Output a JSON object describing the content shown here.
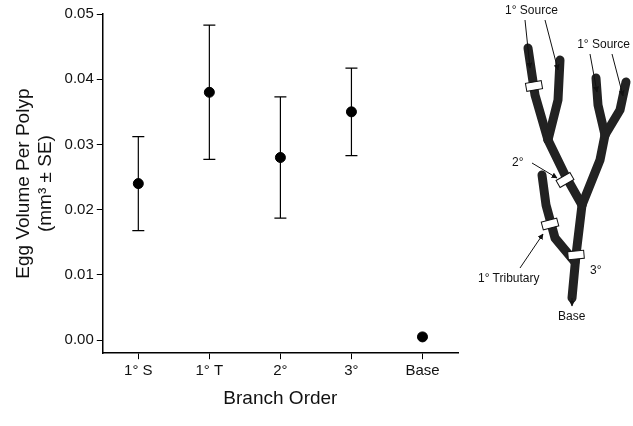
{
  "chart_data": {
    "type": "scatter",
    "x_label": "Branch Order",
    "y_label": [
      "Egg Volume Per Polyp",
      "(mm³ ± SE)"
    ],
    "categories": [
      "1° S",
      "1° T",
      "2°",
      "3°",
      "Base"
    ],
    "values": [
      0.024,
      0.038,
      0.028,
      0.035,
      0.0005
    ],
    "errors": [
      0.0072,
      0.0103,
      0.0093,
      0.0067,
      null
    ],
    "color": "#000000",
    "marker": "circle",
    "ylim": [
      -0.002,
      0.05
    ],
    "yticks": [
      {
        "value": 0,
        "label": "0.00"
      },
      0.01,
      0.02,
      0.03,
      0.04,
      0.05
    ],
    "grid": false
  },
  "diagram": {
    "labels": {
      "source_a": "1° Source",
      "source_b": "1° Source",
      "secondary": "2°",
      "tributary": "1° Tributary",
      "tertiary": "3°",
      "base": "Base"
    }
  }
}
